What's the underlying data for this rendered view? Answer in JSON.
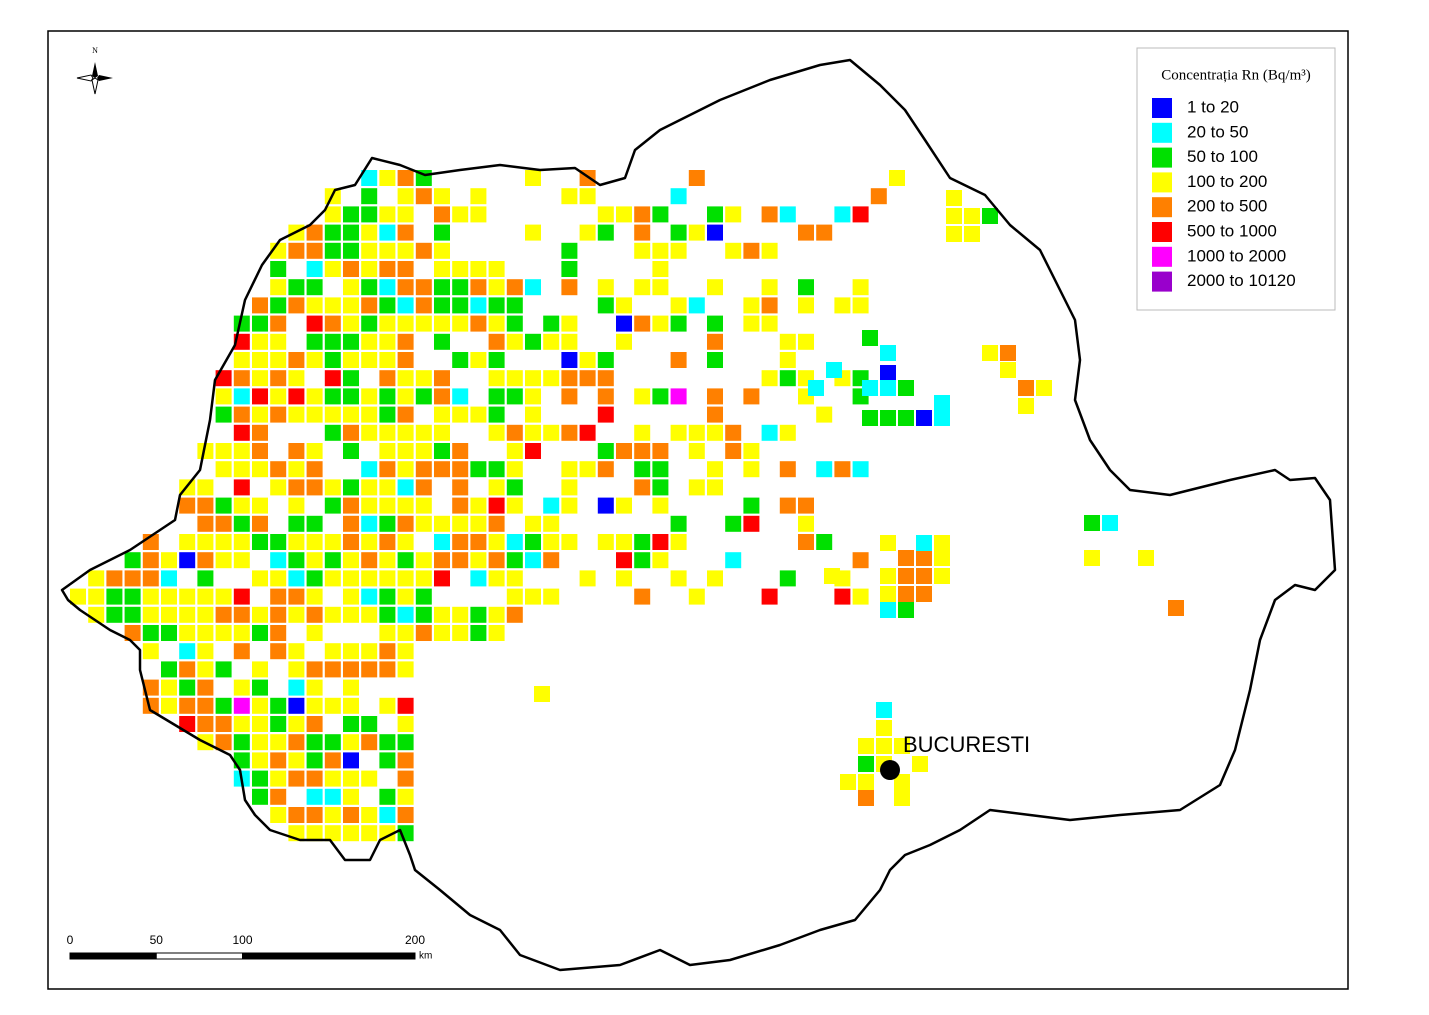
{
  "map": {
    "north_label": "N",
    "legend": {
      "title": "Concentrația Rn (Bq/m³)",
      "items": [
        {
          "label": "1  to  20",
          "color": "#0000ff"
        },
        {
          "label": "20  to  50",
          "color": "#00ffff"
        },
        {
          "label": "50  to  100",
          "color": "#00e000"
        },
        {
          "label": "100  to  200",
          "color": "#ffff00"
        },
        {
          "label": "200  to  500",
          "color": "#ff8000"
        },
        {
          "label": "500  to  1000",
          "color": "#ff0000"
        },
        {
          "label": "1000  to  2000",
          "color": "#ff00ff"
        },
        {
          "label": "2000  to  10120",
          "color": "#9900cc"
        }
      ]
    },
    "city": {
      "label": "BUCURESTI"
    },
    "scale": {
      "ticks": [
        0,
        50,
        100,
        200
      ],
      "unit": "km"
    }
  }
}
